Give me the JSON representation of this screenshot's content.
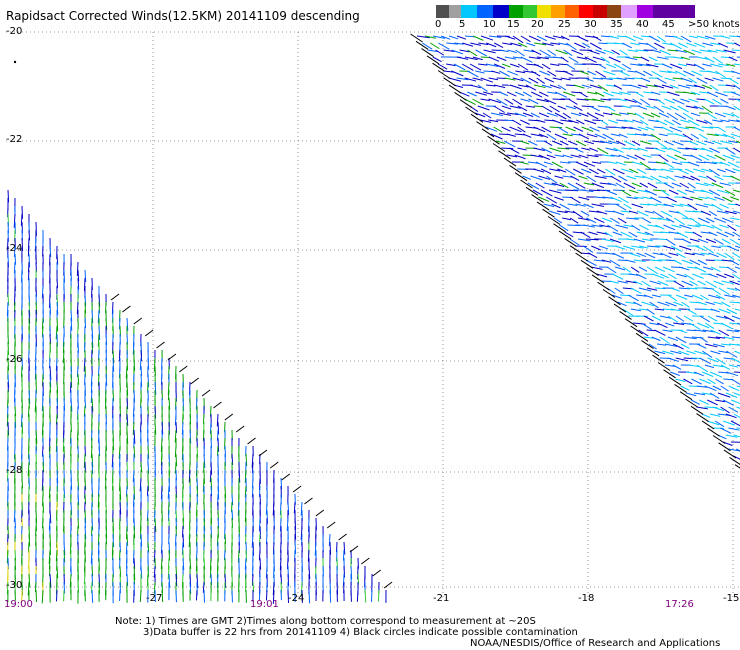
{
  "title": "Rapidsact Corrected Winds(12.5KM) 20141109 descending",
  "legend": {
    "labels": [
      "0",
      "5",
      "10",
      "15",
      "20",
      "25",
      "30",
      "35",
      "40",
      "45",
      ">50 knots"
    ],
    "colors": [
      "#505050",
      "#a0a0a0",
      "#00c8ff",
      "#0064ff",
      "#0000c8",
      "#00a000",
      "#32c832",
      "#f0e000",
      "#ffa000",
      "#ff6000",
      "#ff0000",
      "#c80000",
      "#8b4513",
      "#e0a0ff",
      "#a000e0",
      "#6000a0"
    ]
  },
  "y_axis": {
    "labels": [
      "-20",
      "-22",
      "-24",
      "-26",
      "-28",
      "-30"
    ]
  },
  "x_axis": {
    "labels": [
      "-27",
      "-24",
      "-21",
      "-18",
      "-15"
    ]
  },
  "times": [
    "19:00",
    "19:01",
    "17:26"
  ],
  "notes": {
    "line1": "Note: 1) Times are GMT 2)Times along bottom correspond to measurement at ~20S",
    "line2": "3)Data buffer is 22 hrs from 20141109 4) Black circles indicate possible contamination",
    "credit": "NOAA/NESDIS/Office of Research and Applications"
  },
  "wind_colors": {
    "light": "#00c8ff",
    "mid": "#0064ff",
    "dark": "#0000c8",
    "green": "#00a000",
    "lightgreen": "#32c832",
    "yellow": "#e0d000",
    "black": "#000000"
  }
}
